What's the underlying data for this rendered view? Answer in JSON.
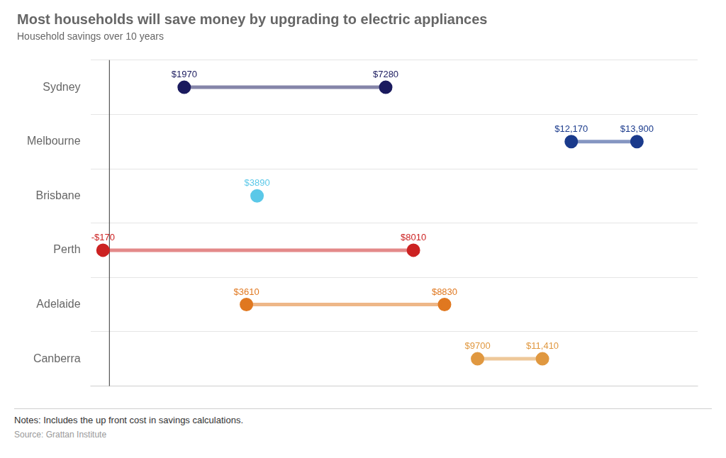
{
  "chart_data": {
    "type": "dumbbell",
    "title": "Most households will save money by upgrading to electric appliances",
    "subtitle": "Household savings over 10 years",
    "notes": "Notes: Includes the up front cost in savings calculations.",
    "source": "Source: Grattan Institute",
    "categories": [
      "Sydney",
      "Melbourne",
      "Brisbane",
      "Perth",
      "Adelaide",
      "Canberra"
    ],
    "values": [
      [
        1970,
        7280
      ],
      [
        12170,
        13900
      ],
      [
        3890,
        null
      ],
      [
        -170,
        8010
      ],
      [
        3610,
        8830
      ],
      [
        9700,
        11410
      ]
    ],
    "value_labels": [
      [
        "$1970",
        "$7280"
      ],
      [
        "$12,170",
        "$13,900"
      ],
      [
        "$3890",
        null
      ],
      [
        "-$170",
        "$8010"
      ],
      [
        "$3610",
        "$8830"
      ],
      [
        "$9700",
        "$11,410"
      ]
    ],
    "colors": [
      "#1a1a5e",
      "#1a3a8c",
      "#5bc8e8",
      "#cc2222",
      "#e07820",
      "#e09840"
    ],
    "xlim": [
      -500,
      15500
    ],
    "divider_x": 0,
    "data_labels": true,
    "tick_labels": "y",
    "grid": true
  }
}
